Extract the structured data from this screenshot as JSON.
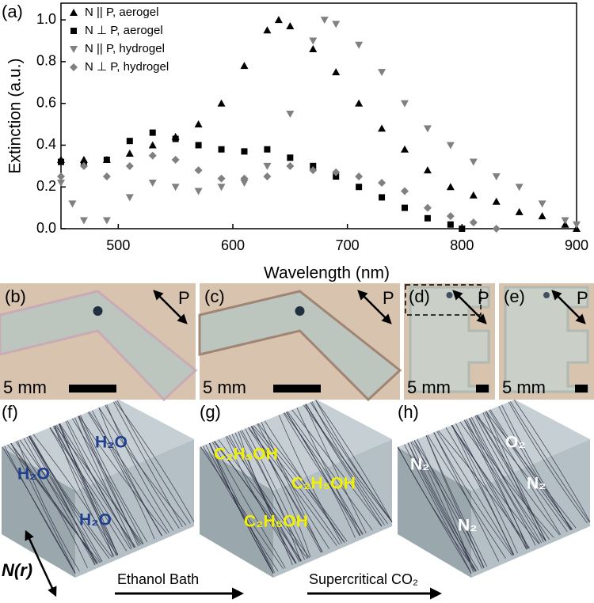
{
  "chart_data": {
    "type": "scatter",
    "panel_label": "(a)",
    "x_label": "Wavelength (nm)",
    "y_label": "Extinction (a.u.)",
    "xlim": [
      450,
      900
    ],
    "xticks": [
      500,
      600,
      700,
      800,
      900
    ],
    "ylim": [
      0,
      1.08
    ],
    "yticks": [
      {
        "value": 0,
        "label": "0.0"
      },
      0.2,
      0.4,
      0.6,
      0.8,
      {
        "value": 1,
        "label": "1.0"
      }
    ],
    "legend": "upper left",
    "series": [
      {
        "name": "N || P, aerogel",
        "color": "#000000",
        "marker": "triangle",
        "x": [
          450,
          470,
          490,
          510,
          530,
          550,
          570,
          590,
          610,
          630,
          640,
          650,
          670,
          690,
          710,
          730,
          750,
          770,
          790,
          810,
          830,
          850,
          870,
          890,
          900
        ],
        "values": [
          0.33,
          0.33,
          0.33,
          0.36,
          0.4,
          0.44,
          0.5,
          0.6,
          0.78,
          0.95,
          1.0,
          0.97,
          0.86,
          0.75,
          0.6,
          0.48,
          0.38,
          0.28,
          0.2,
          0.16,
          0.13,
          0.08,
          0.06,
          0.02,
          0.0
        ]
      },
      {
        "name": "N ⊥ P, aerogel",
        "color": "#000000",
        "marker": "square",
        "x": [
          450,
          470,
          490,
          510,
          530,
          550,
          570,
          590,
          610,
          630,
          650,
          670,
          690,
          710,
          730,
          750,
          770,
          790,
          800
        ],
        "values": [
          0.32,
          0.31,
          0.33,
          0.42,
          0.46,
          0.43,
          0.4,
          0.38,
          0.37,
          0.38,
          0.34,
          0.3,
          0.25,
          0.2,
          0.15,
          0.1,
          0.05,
          0.02,
          0.0
        ]
      },
      {
        "name": "N || P, hydrogel",
        "color": "#808080",
        "marker": "triangle-down",
        "x": [
          450,
          460,
          470,
          490,
          510,
          530,
          550,
          570,
          590,
          610,
          630,
          650,
          670,
          680,
          690,
          710,
          730,
          750,
          770,
          790,
          810,
          830,
          850,
          870,
          890,
          900
        ],
        "values": [
          0.22,
          0.12,
          0.04,
          0.04,
          0.15,
          0.22,
          0.2,
          0.18,
          0.2,
          0.22,
          0.3,
          0.55,
          0.9,
          1.0,
          0.98,
          0.88,
          0.75,
          0.6,
          0.48,
          0.4,
          0.32,
          0.25,
          0.2,
          0.12,
          0.04,
          0.02
        ]
      },
      {
        "name": "N ⊥ P, hydrogel",
        "color": "#808080",
        "marker": "diamond",
        "x": [
          450,
          470,
          490,
          510,
          530,
          550,
          570,
          590,
          610,
          630,
          650,
          670,
          690,
          710,
          730,
          750,
          770,
          790,
          810,
          830
        ],
        "values": [
          0.25,
          0.3,
          0.25,
          0.3,
          0.35,
          0.33,
          0.28,
          0.24,
          0.24,
          0.25,
          0.3,
          0.28,
          0.27,
          0.25,
          0.22,
          0.18,
          0.1,
          0.06,
          0.03,
          0.0
        ]
      }
    ]
  },
  "photos": [
    {
      "label": "(b)",
      "polarizer": "P",
      "scale": "5 mm"
    },
    {
      "label": "(c)",
      "polarizer": "P",
      "scale": "5 mm"
    },
    {
      "label": "(d)",
      "polarizer": "P",
      "scale": "5 mm"
    },
    {
      "label": "(e)",
      "polarizer": "P",
      "scale": "5 mm"
    }
  ],
  "diagrams": [
    {
      "label": "(f)",
      "molecules": [
        "H₂O",
        "H₂O",
        "H₂O"
      ]
    },
    {
      "label": "(g)",
      "molecules": [
        "C₂H₅OH",
        "C₂H₅OH",
        "C₂H₅OH"
      ]
    },
    {
      "label": "(h)",
      "molecules": [
        "N₂",
        "O₂",
        "N₂",
        "N₂"
      ]
    }
  ],
  "director": "N(r)",
  "steps": [
    "Ethanol Bath",
    "Supercritical CO₂"
  ]
}
